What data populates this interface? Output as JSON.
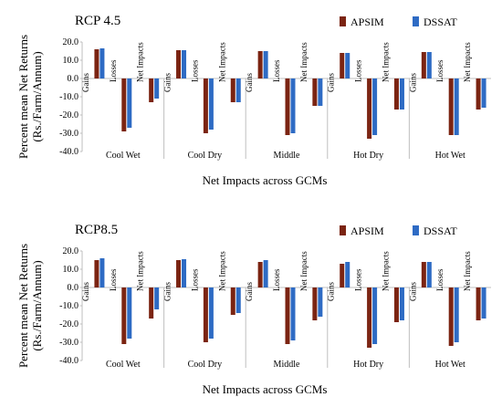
{
  "colors": {
    "apsim": "#7B2412",
    "dssat": "#2E6BC4",
    "axis": "#bfbfbf"
  },
  "chart_data": [
    {
      "type": "bar",
      "title": "RCP 4.5",
      "xlabel": "Net Impacts across GCMs",
      "ylabel": "Percent mean Net Returns (Rs./Farm/Annum)",
      "ylim": [
        -40,
        20
      ],
      "yticks": [
        "20.0",
        "10.0",
        "0.0",
        "-10.0",
        "-20.0",
        "-30.0",
        "-40.0"
      ],
      "legend": [
        "APSIM",
        "DSSAT"
      ],
      "legend_position": "top-right",
      "groups": [
        "Cool Wet",
        "Cool Dry",
        "Middle",
        "Hot Dry",
        "Hot Wet"
      ],
      "subcategories": [
        "Gains",
        "Losses",
        "Net Impacts"
      ],
      "series": [
        {
          "name": "APSIM",
          "values": [
            [
              16,
              -29,
              -13
            ],
            [
              15.5,
              -30,
              -13
            ],
            [
              15,
              -31,
              -15
            ],
            [
              14,
              -33,
              -17
            ],
            [
              14.5,
              -31,
              -17
            ]
          ]
        },
        {
          "name": "DSSAT",
          "values": [
            [
              16.5,
              -27,
              -11
            ],
            [
              15.5,
              -28,
              -13
            ],
            [
              15,
              -30,
              -15
            ],
            [
              14,
              -31,
              -17
            ],
            [
              14.5,
              -31,
              -16
            ]
          ]
        }
      ]
    },
    {
      "type": "bar",
      "title": "RCP8.5",
      "xlabel": "Net Impacts across GCMs",
      "ylabel": "Percent mean Net Returns (Rs./Farm/Annum)",
      "ylim": [
        -40,
        20
      ],
      "yticks": [
        "20.0",
        "10.0",
        "0.0",
        "-10.0",
        "-20.0",
        "-30.0",
        "-40.0"
      ],
      "legend": [
        "APSIM",
        "DSSAT"
      ],
      "legend_position": "top-right",
      "groups": [
        "Cool Wet",
        "Cool Dry",
        "Middle",
        "Hot Dry",
        "Hot Wet"
      ],
      "subcategories": [
        "Gains",
        "Losses",
        "Net Impacts"
      ],
      "series": [
        {
          "name": "APSIM",
          "values": [
            [
              15,
              -31,
              -17
            ],
            [
              15,
              -30,
              -15
            ],
            [
              14,
              -31,
              -18
            ],
            [
              13,
              -33,
              -19
            ],
            [
              14,
              -32,
              -18
            ]
          ]
        },
        {
          "name": "DSSAT",
          "values": [
            [
              16,
              -28,
              -12
            ],
            [
              15.5,
              -28,
              -14
            ],
            [
              15,
              -29,
              -16
            ],
            [
              14,
              -31,
              -18
            ],
            [
              14,
              -30,
              -17
            ]
          ]
        }
      ]
    }
  ]
}
